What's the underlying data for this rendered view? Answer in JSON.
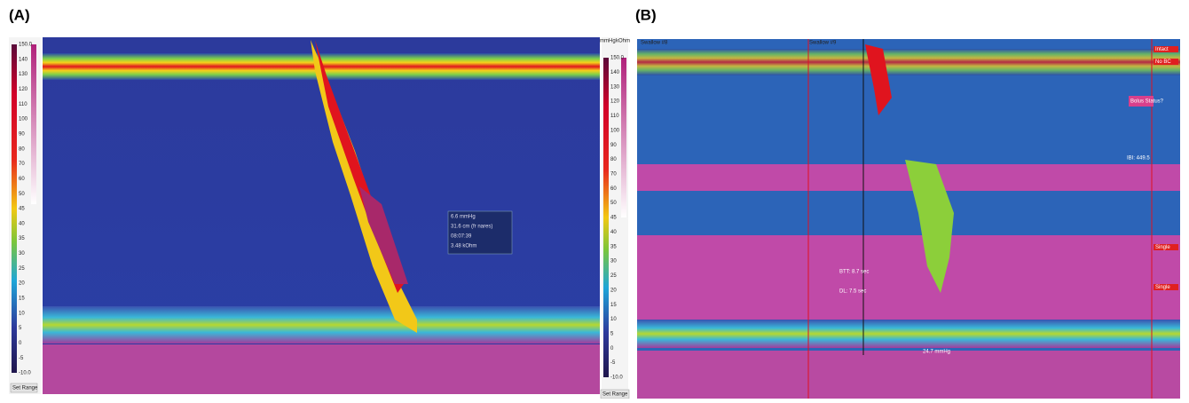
{
  "panels": [
    {
      "label": "(A)",
      "scale_ticks": [
        "150.0",
        "140",
        "130",
        "120",
        "110",
        "100",
        "90",
        "80",
        "70",
        "60",
        "50",
        "45",
        "40",
        "35",
        "30",
        "25",
        "20",
        "15",
        "10",
        "5",
        "0",
        "-5",
        "-10.0"
      ],
      "units": [
        "mmHg",
        "kOhm"
      ],
      "set_range": "Set Range",
      "tooltip": [
        "6.6 mmHg",
        "31.6 cm (fr nares)",
        "08:07:39",
        "3.48 kOhm"
      ]
    },
    {
      "label": "(B)",
      "swallows": [
        "Swallow #8",
        "Swallow #9"
      ],
      "tags": [
        "Intact",
        "No BC",
        "Bolus Status?",
        "Single",
        "Single"
      ],
      "notes": [
        "IBI: 449.5",
        "BTT: 8.7 sec",
        "DL: 7.5 sec",
        "24.7 mmHg"
      ]
    }
  ]
}
